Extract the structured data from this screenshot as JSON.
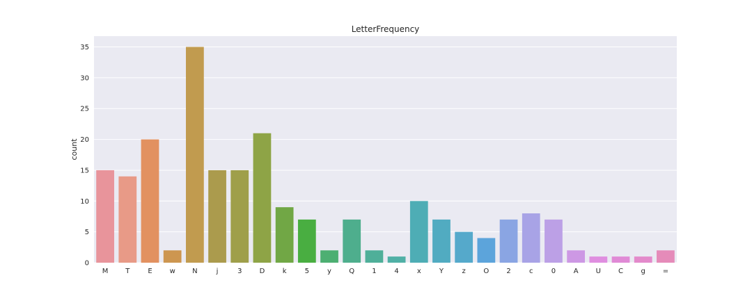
{
  "chart_data": {
    "type": "bar",
    "title": "LetterFrequency",
    "xlabel": "",
    "ylabel": "count",
    "ylim": [
      0,
      36.75
    ],
    "yticks": [
      0,
      5,
      10,
      15,
      20,
      25,
      30,
      35
    ],
    "grid": true,
    "legend": "none",
    "categories": [
      "M",
      "T",
      "E",
      "w",
      "N",
      "j",
      "3",
      "D",
      "k",
      "5",
      "y",
      "Q",
      "1",
      "4",
      "x",
      "Y",
      "z",
      "O",
      "2",
      "c",
      "0",
      "A",
      "U",
      "C",
      "g",
      "="
    ],
    "values": [
      15,
      14,
      20,
      2,
      35,
      15,
      15,
      21,
      9,
      7,
      2,
      7,
      2,
      1,
      10,
      7,
      5,
      4,
      7,
      8,
      7,
      2,
      1,
      1,
      1,
      2
    ],
    "colors": [
      "#e8949b",
      "#e89a87",
      "#e29160",
      "#cd9650",
      "#c19b4f",
      "#ab9b4d",
      "#9f9f4a",
      "#8ea446",
      "#71a745",
      "#49ae41",
      "#4daf72",
      "#4eae8d",
      "#4faf99",
      "#50b0a6",
      "#4eadb5",
      "#51abc1",
      "#55a9cb",
      "#5ca4db",
      "#8aa5e3",
      "#a8a3e6",
      "#bca0e6",
      "#cd98e4",
      "#df8ee0",
      "#e08ad6",
      "#e38acb",
      "#e58bb9"
    ],
    "background": "#eaeaf2",
    "grid_color": "#ffffff"
  }
}
